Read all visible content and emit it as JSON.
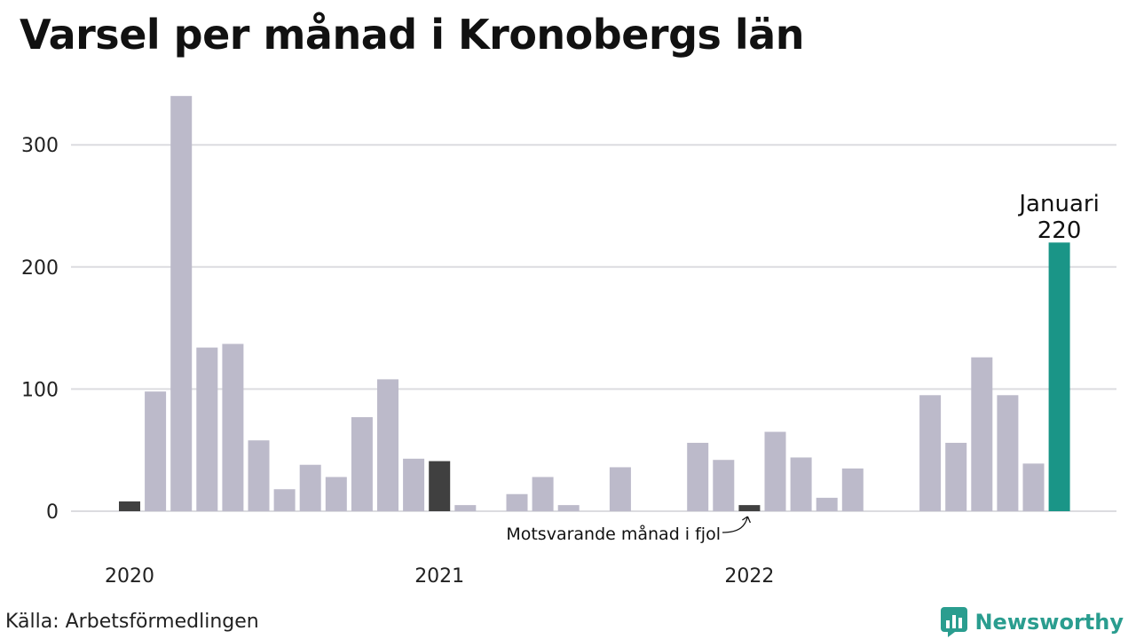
{
  "chart_data": {
    "type": "bar",
    "title": "Varsel per månad i Kronobergs län",
    "xlabel": "",
    "ylabel": "",
    "ylim": [
      0,
      345
    ],
    "yticks": [
      0,
      100,
      200,
      300
    ],
    "xtick_labels": [
      "2020",
      "2021",
      "2022"
    ],
    "grid": true,
    "highlight_color": "#1a9587",
    "default_color": "#bcbaca",
    "previous_year_color": "#404040",
    "categories": [
      "2020-01",
      "2020-02",
      "2020-03",
      "2020-04",
      "2020-05",
      "2020-06",
      "2020-07",
      "2020-08",
      "2020-09",
      "2020-10",
      "2020-11",
      "2020-12",
      "2021-01",
      "2021-02",
      "2021-03",
      "2021-04",
      "2021-05",
      "2021-06",
      "2021-07",
      "2021-08",
      "2021-09",
      "2021-10",
      "2021-11",
      "2021-12",
      "2022-01",
      "2022-02",
      "2022-03",
      "2022-04",
      "2022-05",
      "2022-06",
      "2022-07",
      "2022-08",
      "2022-09",
      "2022-10",
      "2022-11",
      "2022-12",
      "2023-01"
    ],
    "values": [
      8,
      98,
      340,
      134,
      137,
      58,
      18,
      38,
      28,
      77,
      108,
      43,
      41,
      5,
      0,
      14,
      28,
      5,
      0,
      36,
      0,
      0,
      56,
      42,
      5,
      65,
      44,
      11,
      35,
      0,
      0,
      95,
      56,
      126,
      95,
      39,
      220
    ],
    "bar_roles": [
      "prev",
      "default",
      "default",
      "default",
      "default",
      "default",
      "default",
      "default",
      "default",
      "default",
      "default",
      "default",
      "prev",
      "default",
      "default",
      "default",
      "default",
      "default",
      "default",
      "default",
      "default",
      "default",
      "default",
      "default",
      "prev",
      "default",
      "default",
      "default",
      "default",
      "default",
      "default",
      "default",
      "default",
      "default",
      "default",
      "default",
      "highlight"
    ],
    "annotations": {
      "highlight_month": "Januari",
      "highlight_value": "220",
      "previous_note": "Motsvarande månad i fjol"
    }
  },
  "footer": {
    "source": "Källa: Arbetsförmedlingen",
    "brand": "Newsworthy",
    "brand_color": "#2a9d8f"
  },
  "icons": {
    "brand_logo": "bar-chart-logo-icon"
  }
}
